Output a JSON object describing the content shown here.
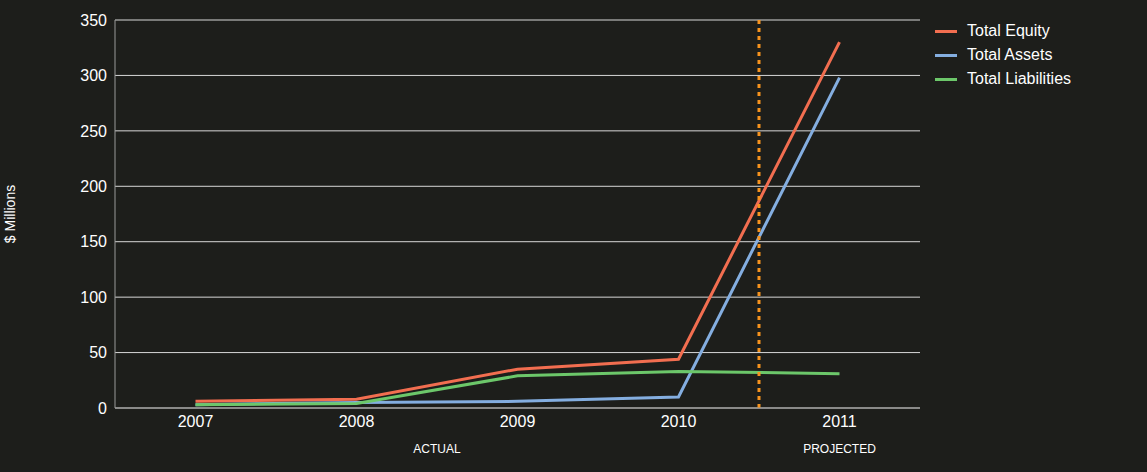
{
  "chart_data": {
    "type": "line",
    "y_label": "$ Millions",
    "x": [
      2007,
      2008,
      2009,
      2010,
      2011
    ],
    "xlim": [
      2006.5,
      2011.5
    ],
    "xticks": [
      2007,
      2008,
      2009,
      2010,
      2011
    ],
    "ylim": [
      0,
      350
    ],
    "yticks": [
      0,
      50,
      100,
      150,
      200,
      250,
      300,
      350
    ],
    "grid": true,
    "legend": "top-right",
    "divider": 2010.5,
    "annotations": [
      {
        "text": "ACTUAL",
        "x": 2008.5
      },
      {
        "text": "PROJECTED",
        "x": 2011
      }
    ],
    "series": [
      {
        "name": "Total Equity",
        "color": "#f26e50",
        "values": [
          6,
          8,
          35,
          44,
          330
        ]
      },
      {
        "name": "Total Assets",
        "color": "#84aee0",
        "values": [
          3,
          5,
          6,
          10,
          298
        ]
      },
      {
        "name": "Total Liabilities",
        "color": "#6cc76a",
        "values": [
          3,
          4,
          29,
          33,
          31
        ]
      }
    ]
  }
}
